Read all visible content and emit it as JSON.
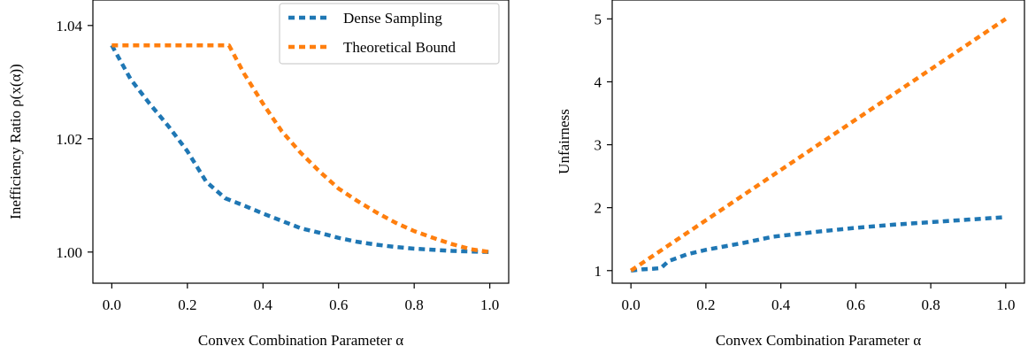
{
  "chart_data": [
    {
      "type": "line",
      "xlabel": "Convex Combination Parameter α",
      "ylabel": "Inefficiency Ratio ρ(x(α))",
      "xlim": [
        -0.05,
        1.05
      ],
      "ylim": [
        0.9945,
        1.0445
      ],
      "xticks": [
        0.0,
        0.2,
        0.4,
        0.6,
        0.8,
        1.0
      ],
      "xtick_labels": [
        "0.0",
        "0.2",
        "0.4",
        "0.6",
        "0.8",
        "1.0"
      ],
      "yticks": [
        1.0,
        1.02,
        1.04
      ],
      "ytick_labels": [
        "1.00",
        "1.02",
        "1.04"
      ],
      "grid": false,
      "legend": {
        "position": "top-right",
        "show": true
      },
      "series": [
        {
          "name": "Dense Sampling",
          "color": "#1f77b4",
          "x": [
            0.0,
            0.05,
            0.1,
            0.15,
            0.2,
            0.25,
            0.3,
            0.35,
            0.4,
            0.45,
            0.5,
            0.55,
            0.6,
            0.65,
            0.7,
            0.75,
            0.8,
            0.85,
            0.9,
            0.95,
            1.0
          ],
          "y": [
            1.0365,
            1.0305,
            1.0262,
            1.0222,
            1.0178,
            1.0124,
            1.0095,
            1.0082,
            1.0068,
            1.0055,
            1.0042,
            1.0034,
            1.0025,
            1.0018,
            1.0013,
            1.0009,
            1.0006,
            1.0004,
            1.0002,
            1.0001,
            1.0
          ]
        },
        {
          "name": "Theoretical Bound",
          "color": "#ff7f0e",
          "x": [
            0.0,
            0.31,
            0.35,
            0.4,
            0.45,
            0.5,
            0.55,
            0.6,
            0.65,
            0.7,
            0.75,
            0.8,
            0.85,
            0.9,
            0.95,
            1.0
          ],
          "y": [
            1.0365,
            1.0365,
            1.0315,
            1.0262,
            1.0213,
            1.0175,
            1.0142,
            1.0112,
            1.009,
            1.007,
            1.0052,
            1.0037,
            1.0025,
            1.0014,
            1.0005,
            1.0
          ]
        }
      ]
    },
    {
      "type": "line",
      "xlabel": "Convex Combination Parameter α",
      "ylabel": "Unfairness",
      "xlim": [
        -0.05,
        1.05
      ],
      "ylim": [
        0.8,
        5.3
      ],
      "xticks": [
        0.0,
        0.2,
        0.4,
        0.6,
        0.8,
        1.0
      ],
      "xtick_labels": [
        "0.0",
        "0.2",
        "0.4",
        "0.6",
        "0.8",
        "1.0"
      ],
      "yticks": [
        1,
        2,
        3,
        4,
        5
      ],
      "ytick_labels": [
        "1",
        "2",
        "3",
        "4",
        "5"
      ],
      "grid": false,
      "legend": {
        "show": false
      },
      "series": [
        {
          "color": "#1f77b4",
          "x": [
            0.0,
            0.03,
            0.06,
            0.08,
            0.1,
            0.15,
            0.2,
            0.3,
            0.38,
            0.5,
            0.6,
            0.7,
            0.8,
            0.9,
            1.0
          ],
          "y": [
            1.0,
            1.02,
            1.03,
            1.04,
            1.15,
            1.26,
            1.33,
            1.44,
            1.54,
            1.62,
            1.68,
            1.73,
            1.77,
            1.81,
            1.85
          ]
        },
        {
          "color": "#ff7f0e",
          "x": [
            0.0,
            1.0
          ],
          "y": [
            1.0,
            5.0
          ]
        }
      ]
    }
  ]
}
